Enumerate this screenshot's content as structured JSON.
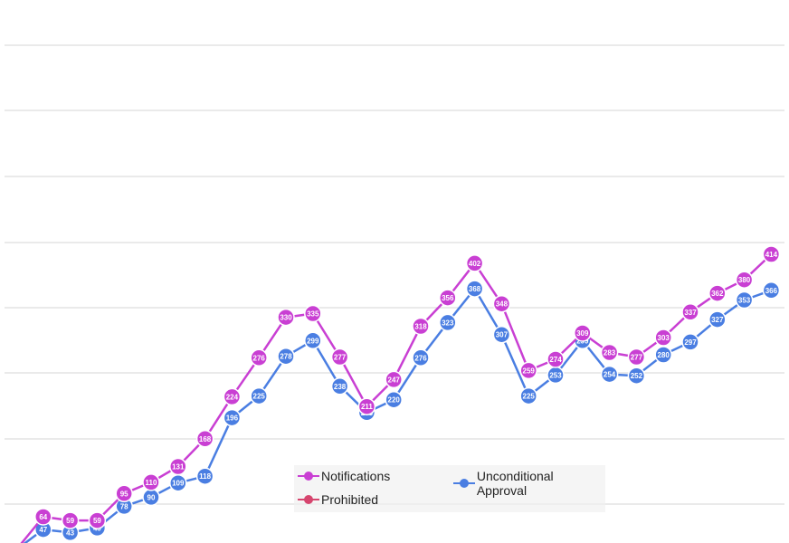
{
  "chart_data": {
    "type": "line",
    "ylim": [
      -40,
      450
    ],
    "grid": true,
    "legend_position": "bottom",
    "series": [
      {
        "name": "Notifications",
        "color": "#c93fd3",
        "values": [
          20,
          64,
          59,
          59,
          95,
          110,
          131,
          168,
          224,
          276,
          330,
          335,
          277,
          211,
          247,
          318,
          356,
          402,
          348,
          259,
          274,
          309,
          283,
          277,
          303,
          337,
          362,
          380,
          414
        ]
      },
      {
        "name": "Unconditional Approval",
        "color": "#4a7ee2",
        "values": [
          20,
          47,
          43,
          49,
          78,
          90,
          109,
          118,
          196,
          225,
          278,
          299,
          238,
          203,
          220,
          276,
          323,
          368,
          307,
          225,
          253,
          299,
          254,
          252,
          280,
          297,
          327,
          353,
          366
        ]
      },
      {
        "name": "Prohibited",
        "color": "#d6456e",
        "values": []
      }
    ]
  }
}
